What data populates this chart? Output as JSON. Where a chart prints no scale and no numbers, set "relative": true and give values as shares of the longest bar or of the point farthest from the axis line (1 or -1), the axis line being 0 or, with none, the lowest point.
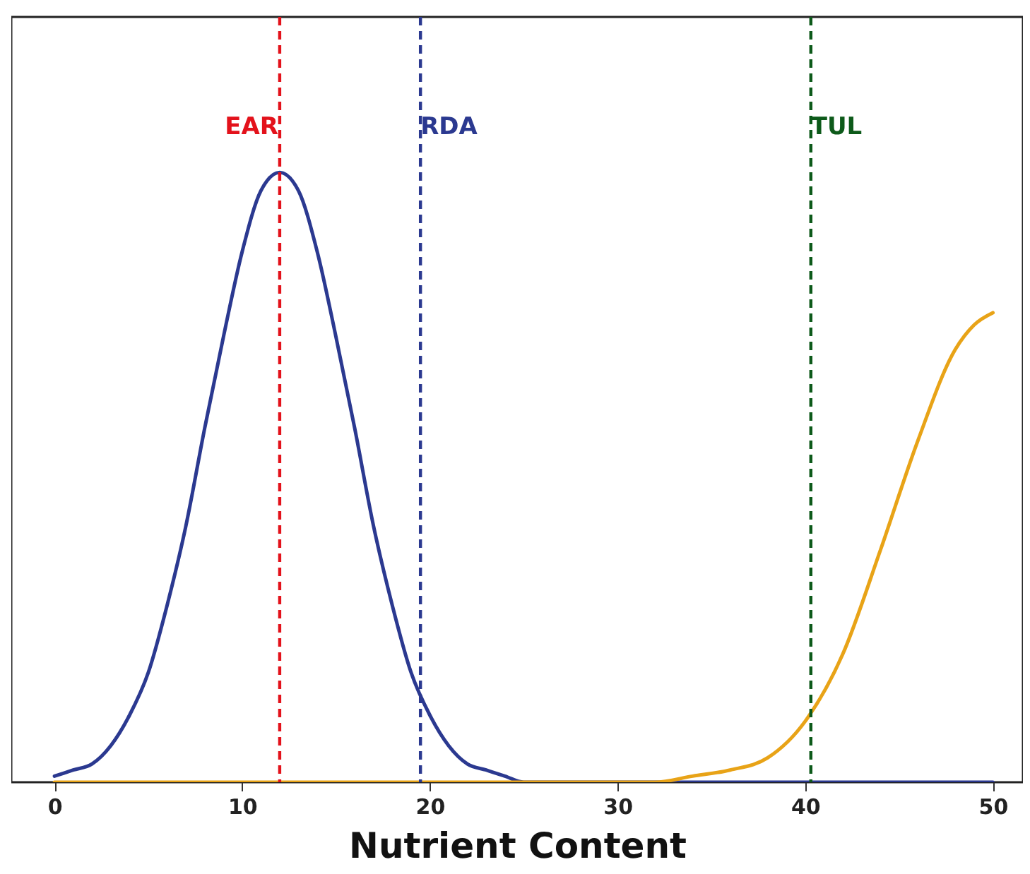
{
  "chart_data": {
    "type": "line",
    "relative": true,
    "xlabel": "Nutrient Content",
    "xlim": [
      -2.3,
      51.6
    ],
    "xticks": [
      0,
      10,
      20,
      30,
      40,
      50
    ],
    "grid": false,
    "marker": "none",
    "line_style": "solid",
    "series": [
      {
        "color": "#2b3990",
        "x": [
          0,
          1,
          2,
          3,
          4,
          5,
          6,
          7,
          8,
          9,
          10,
          11,
          12,
          13,
          14,
          15,
          16,
          17,
          18,
          19,
          20,
          21,
          22,
          23,
          24,
          25,
          26,
          30,
          40,
          50
        ],
        "values": [
          0.01,
          0.02,
          0.03,
          0.06,
          0.11,
          0.18,
          0.29,
          0.42,
          0.58,
          0.73,
          0.87,
          0.97,
          1,
          0.97,
          0.87,
          0.73,
          0.58,
          0.42,
          0.29,
          0.18,
          0.11,
          0.06,
          0.03,
          0.02,
          0.01,
          0,
          0,
          0,
          0,
          0
        ]
      },
      {
        "color": "#e8a317",
        "x": [
          0,
          10,
          20,
          28,
          30,
          32,
          34,
          36,
          38,
          40,
          42,
          44,
          46,
          48,
          49,
          50
        ],
        "values": [
          0,
          0,
          0,
          0,
          0,
          0,
          0.01,
          0.02,
          0.04,
          0.1,
          0.21,
          0.38,
          0.56,
          0.71,
          0.75,
          0.77
        ]
      }
    ],
    "ref_lines": [
      {
        "axis": "x",
        "value": 12,
        "label": "EAR",
        "color": "#e3121b",
        "line_style": "dashed"
      },
      {
        "axis": "x",
        "value": 19.5,
        "label": "RDA",
        "color": "#2b3990",
        "line_style": "dashed"
      },
      {
        "axis": "x",
        "value": 40.3,
        "label": "TUL",
        "color": "#0d5a1a",
        "line_style": "dashed"
      }
    ]
  }
}
